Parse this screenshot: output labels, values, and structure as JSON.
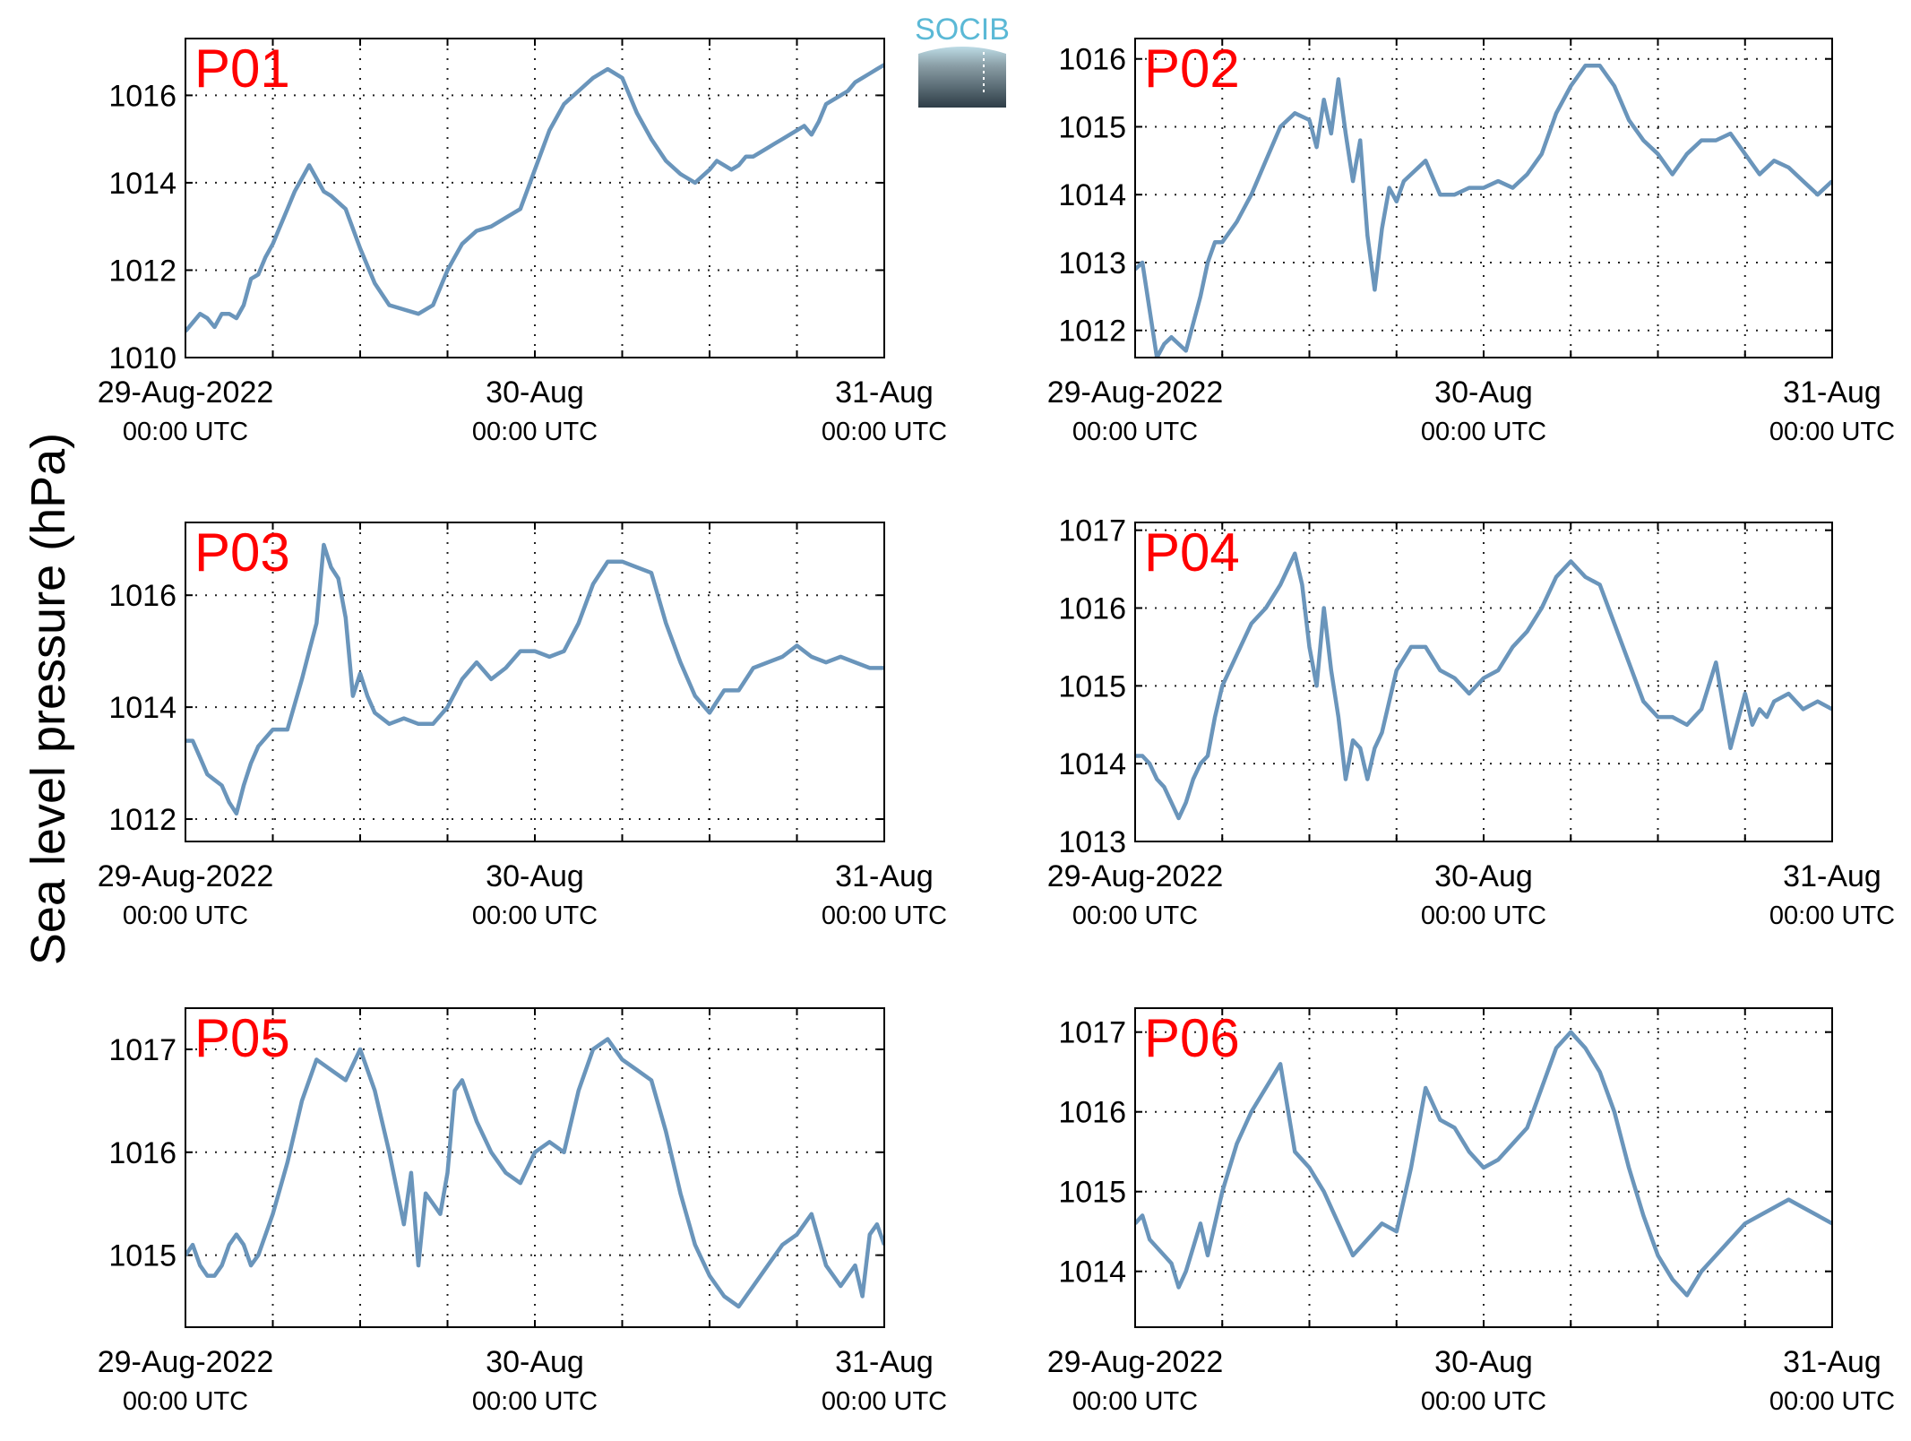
{
  "figure": {
    "ylabel": "Sea level pressure (hPa)",
    "logo_text": "SOCIB"
  },
  "chart_data": [
    {
      "type": "line",
      "title": "P01",
      "x_ticks": [
        {
          "date": "29-Aug-2022",
          "time": "00:00 UTC"
        },
        {
          "date": "30-Aug",
          "time": "00:00 UTC"
        },
        {
          "date": "31-Aug",
          "time": "00:00 UTC"
        }
      ],
      "xlim": [
        0,
        48
      ],
      "ylim": [
        1010,
        1017.3
      ],
      "yticks": [
        1010,
        1012,
        1014,
        1016
      ],
      "grid": true,
      "series": [
        {
          "x": [
            0,
            0.5,
            1,
            1.5,
            2,
            2.5,
            3,
            3.5,
            4,
            4.5,
            5,
            5.5,
            6,
            6.5,
            7,
            7.5,
            8,
            8.5,
            9,
            9.5,
            10,
            11,
            12,
            13,
            14,
            15,
            16,
            17,
            17.5,
            18,
            18.5,
            19,
            20,
            21,
            22,
            23,
            24,
            25,
            26,
            27,
            28,
            29,
            30,
            31,
            32,
            33,
            34,
            35,
            36,
            36.5,
            37,
            37.5,
            38,
            38.5,
            39,
            39.5,
            40,
            40.5,
            41,
            41.5,
            42,
            42.5,
            43,
            43.5,
            44,
            44.5,
            45,
            45.5,
            46,
            46.5,
            47,
            47.5,
            48
          ],
          "y": [
            1010.6,
            1010.8,
            1011,
            1010.9,
            1010.7,
            1011,
            1011,
            1010.9,
            1011.2,
            1011.8,
            1011.9,
            1012.3,
            1012.6,
            1013,
            1013.4,
            1013.8,
            1014.1,
            1014.4,
            1014.1,
            1013.8,
            1013.7,
            1013.4,
            1012.5,
            1011.7,
            1011.2,
            1011.1,
            1011,
            1011.2,
            1011.6,
            1012,
            1012.3,
            1012.6,
            1012.9,
            1013,
            1013.2,
            1013.4,
            1014.3,
            1015.2,
            1015.8,
            1016.1,
            1016.4,
            1016.6,
            1016.4,
            1015.6,
            1015,
            1014.5,
            1014.2,
            1014,
            1014.3,
            1014.5,
            1014.4,
            1014.3,
            1014.4,
            1014.6,
            1014.6,
            1014.7,
            1014.8,
            1014.9,
            1015,
            1015.1,
            1015.2,
            1015.3,
            1015.1,
            1015.4,
            1015.8,
            1015.9,
            1016,
            1016.1,
            1016.3,
            1016.4,
            1016.5,
            1016.6,
            1016.7
          ]
        }
      ]
    },
    {
      "type": "line",
      "title": "P02",
      "x_ticks": [
        {
          "date": "29-Aug-2022",
          "time": "00:00 UTC"
        },
        {
          "date": "30-Aug",
          "time": "00:00 UTC"
        },
        {
          "date": "31-Aug",
          "time": "00:00 UTC"
        }
      ],
      "xlim": [
        0,
        48
      ],
      "ylim": [
        1011.6,
        1016.3
      ],
      "yticks": [
        1012,
        1013,
        1014,
        1015,
        1016
      ],
      "grid": true,
      "series": [
        {
          "x": [
            0,
            0.5,
            1,
            1.5,
            2,
            2.5,
            3,
            3.5,
            4,
            4.5,
            5,
            5.5,
            6,
            7,
            8,
            9,
            10,
            11,
            12,
            12.5,
            13,
            13.5,
            14,
            14.5,
            15,
            15.5,
            16,
            16.5,
            17,
            17.5,
            18,
            18.5,
            19,
            20,
            21,
            22,
            23,
            24,
            25,
            26,
            27,
            28,
            29,
            30,
            31,
            32,
            33,
            34,
            35,
            36,
            37,
            38,
            39,
            40,
            41,
            42,
            43,
            44,
            45,
            46,
            47,
            48
          ],
          "y": [
            1012.9,
            1013,
            1012.3,
            1011.6,
            1011.8,
            1011.9,
            1011.8,
            1011.7,
            1012.1,
            1012.5,
            1013,
            1013.3,
            1013.3,
            1013.6,
            1014,
            1014.5,
            1015,
            1015.2,
            1015.1,
            1014.7,
            1015.4,
            1014.9,
            1015.7,
            1014.9,
            1014.2,
            1014.8,
            1013.4,
            1012.6,
            1013.5,
            1014.1,
            1013.9,
            1014.2,
            1014.3,
            1014.5,
            1014,
            1014,
            1014.1,
            1014.1,
            1014.2,
            1014.1,
            1014.3,
            1014.6,
            1015.2,
            1015.6,
            1015.9,
            1015.9,
            1015.6,
            1015.1,
            1014.8,
            1014.6,
            1014.3,
            1014.6,
            1014.8,
            1014.8,
            1014.9,
            1014.6,
            1014.3,
            1014.5,
            1014.4,
            1014.2,
            1014,
            1014.2
          ]
        }
      ]
    },
    {
      "type": "line",
      "title": "P03",
      "x_ticks": [
        {
          "date": "29-Aug-2022",
          "time": "00:00 UTC"
        },
        {
          "date": "30-Aug",
          "time": "00:00 UTC"
        },
        {
          "date": "31-Aug",
          "time": "00:00 UTC"
        }
      ],
      "xlim": [
        0,
        48
      ],
      "ylim": [
        1011.6,
        1017.3
      ],
      "yticks": [
        1012,
        1014,
        1016
      ],
      "grid": true,
      "series": [
        {
          "x": [
            0,
            0.5,
            1,
            1.5,
            2,
            2.5,
            3,
            3.5,
            4,
            4.5,
            5,
            6,
            7,
            8,
            8.5,
            9,
            9.5,
            10,
            10.5,
            11,
            11.5,
            12,
            12.5,
            13,
            14,
            15,
            16,
            17,
            18,
            19,
            20,
            21,
            22,
            23,
            24,
            25,
            26,
            27,
            28,
            29,
            30,
            31,
            32,
            33,
            34,
            35,
            36,
            37,
            38,
            39,
            40,
            41,
            42,
            43,
            44,
            45,
            46,
            47,
            48
          ],
          "y": [
            1013.4,
            1013.4,
            1013.1,
            1012.8,
            1012.7,
            1012.6,
            1012.3,
            1012.1,
            1012.6,
            1013,
            1013.3,
            1013.6,
            1013.6,
            1014.5,
            1015,
            1015.5,
            1016.9,
            1016.5,
            1016.3,
            1015.6,
            1014.2,
            1014.6,
            1014.2,
            1013.9,
            1013.7,
            1013.8,
            1013.7,
            1013.7,
            1014,
            1014.5,
            1014.8,
            1014.5,
            1014.7,
            1015,
            1015,
            1014.9,
            1015,
            1015.5,
            1016.2,
            1016.6,
            1016.6,
            1016.5,
            1016.4,
            1015.5,
            1014.8,
            1014.2,
            1013.9,
            1014.3,
            1014.3,
            1014.7,
            1014.8,
            1014.9,
            1015.1,
            1014.9,
            1014.8,
            1014.9,
            1014.8,
            1014.7,
            1014.7
          ]
        }
      ]
    },
    {
      "type": "line",
      "title": "P04",
      "x_ticks": [
        {
          "date": "29-Aug-2022",
          "time": "00:00 UTC"
        },
        {
          "date": "30-Aug",
          "time": "00:00 UTC"
        },
        {
          "date": "31-Aug",
          "time": "00:00 UTC"
        }
      ],
      "xlim": [
        0,
        48
      ],
      "ylim": [
        1013,
        1017.1
      ],
      "yticks": [
        1013,
        1014,
        1015,
        1016,
        1017
      ],
      "grid": true,
      "series": [
        {
          "x": [
            0,
            0.5,
            1,
            1.5,
            2,
            2.5,
            3,
            3.5,
            4,
            4.5,
            5,
            5.5,
            6,
            7,
            8,
            9,
            10,
            11,
            11.5,
            12,
            12.5,
            13,
            13.5,
            14,
            14.5,
            15,
            15.5,
            16,
            16.5,
            17,
            17.5,
            18,
            19,
            20,
            21,
            22,
            23,
            24,
            25,
            26,
            27,
            28,
            29,
            30,
            31,
            32,
            33,
            34,
            35,
            36,
            37,
            38,
            39,
            40,
            41,
            42,
            42.5,
            43,
            43.5,
            44,
            45,
            46,
            47,
            48
          ],
          "y": [
            1014.1,
            1014.1,
            1014,
            1013.8,
            1013.7,
            1013.5,
            1013.3,
            1013.5,
            1013.8,
            1014,
            1014.1,
            1014.6,
            1015,
            1015.4,
            1015.8,
            1016,
            1016.3,
            1016.7,
            1016.3,
            1015.5,
            1015,
            1016,
            1015.2,
            1014.6,
            1013.8,
            1014.3,
            1014.2,
            1013.8,
            1014.2,
            1014.4,
            1014.8,
            1015.2,
            1015.5,
            1015.5,
            1015.2,
            1015.1,
            1014.9,
            1015.1,
            1015.2,
            1015.5,
            1015.7,
            1016,
            1016.4,
            1016.6,
            1016.4,
            1016.3,
            1015.8,
            1015.3,
            1014.8,
            1014.6,
            1014.6,
            1014.5,
            1014.7,
            1015.3,
            1014.2,
            1014.9,
            1014.5,
            1014.7,
            1014.6,
            1014.8,
            1014.9,
            1014.7,
            1014.8,
            1014.7
          ]
        }
      ]
    },
    {
      "type": "line",
      "title": "P05",
      "x_ticks": [
        {
          "date": "29-Aug-2022",
          "time": "00:00 UTC"
        },
        {
          "date": "30-Aug",
          "time": "00:00 UTC"
        },
        {
          "date": "31-Aug",
          "time": "00:00 UTC"
        }
      ],
      "xlim": [
        0,
        48
      ],
      "ylim": [
        1014.3,
        1017.4
      ],
      "yticks": [
        1015,
        1016,
        1017
      ],
      "grid": true,
      "series": [
        {
          "x": [
            0,
            0.5,
            1,
            1.5,
            2,
            2.5,
            3,
            3.5,
            4,
            4.5,
            5,
            6,
            7,
            8,
            9,
            10,
            11,
            12,
            13,
            14,
            15,
            15.5,
            16,
            16.5,
            17,
            17.5,
            18,
            18.5,
            19,
            19.5,
            20,
            21,
            22,
            23,
            24,
            25,
            26,
            27,
            28,
            29,
            30,
            31,
            32,
            33,
            34,
            35,
            36,
            37,
            38,
            39,
            40,
            41,
            42,
            43,
            44,
            45,
            46,
            46.5,
            47,
            47.5,
            48
          ],
          "y": [
            1015,
            1015.1,
            1014.9,
            1014.8,
            1014.8,
            1014.9,
            1015.1,
            1015.2,
            1015.1,
            1014.9,
            1015,
            1015.4,
            1015.9,
            1016.5,
            1016.9,
            1016.8,
            1016.7,
            1017,
            1016.6,
            1016,
            1015.3,
            1015.8,
            1014.9,
            1015.6,
            1015.5,
            1015.4,
            1015.8,
            1016.6,
            1016.7,
            1016.5,
            1016.3,
            1016,
            1015.8,
            1015.7,
            1016,
            1016.1,
            1016,
            1016.6,
            1017,
            1017.1,
            1016.9,
            1016.8,
            1016.7,
            1016.2,
            1015.6,
            1015.1,
            1014.8,
            1014.6,
            1014.5,
            1014.7,
            1014.9,
            1015.1,
            1015.2,
            1015.4,
            1014.9,
            1014.7,
            1014.9,
            1014.6,
            1015.2,
            1015.3,
            1015.1
          ]
        }
      ]
    },
    {
      "type": "line",
      "title": "P06",
      "x_ticks": [
        {
          "date": "29-Aug-2022",
          "time": "00:00 UTC"
        },
        {
          "date": "30-Aug",
          "time": "00:00 UTC"
        },
        {
          "date": "31-Aug",
          "time": "00:00 UTC"
        }
      ],
      "xlim": [
        0,
        48
      ],
      "ylim": [
        1013.3,
        1017.3
      ],
      "yticks": [
        1014,
        1015,
        1016,
        1017
      ],
      "grid": true,
      "series": [
        {
          "x": [
            0,
            0.5,
            1,
            1.5,
            2,
            2.5,
            3,
            3.5,
            4,
            4.5,
            5,
            6,
            7,
            8,
            9,
            10,
            11,
            12,
            13,
            14,
            15,
            16,
            17,
            18,
            19,
            20,
            21,
            22,
            23,
            24,
            25,
            26,
            27,
            28,
            29,
            30,
            31,
            32,
            33,
            34,
            35,
            36,
            37,
            38,
            39,
            40,
            41,
            42,
            43,
            44,
            45,
            46,
            47,
            48
          ],
          "y": [
            1014.6,
            1014.7,
            1014.4,
            1014.3,
            1014.2,
            1014.1,
            1013.8,
            1014,
            1014.3,
            1014.6,
            1014.2,
            1015,
            1015.6,
            1016,
            1016.3,
            1016.6,
            1015.5,
            1015.3,
            1015,
            1014.6,
            1014.2,
            1014.4,
            1014.6,
            1014.5,
            1015.3,
            1016.3,
            1015.9,
            1015.8,
            1015.5,
            1015.3,
            1015.4,
            1015.6,
            1015.8,
            1016.3,
            1016.8,
            1017,
            1016.8,
            1016.5,
            1016,
            1015.3,
            1014.7,
            1014.2,
            1013.9,
            1013.7,
            1014,
            1014.2,
            1014.4,
            1014.6,
            1014.7,
            1014.8,
            1014.9,
            1014.8,
            1014.7,
            1014.6
          ]
        }
      ]
    }
  ]
}
